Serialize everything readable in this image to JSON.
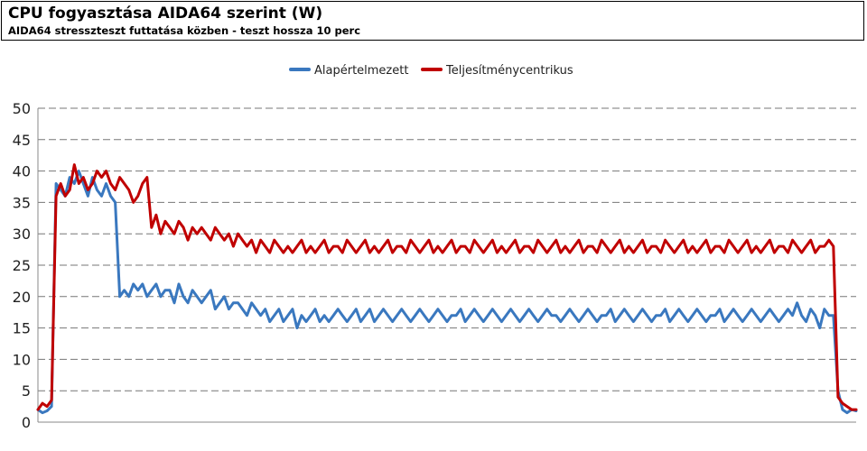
{
  "chart_data": {
    "type": "line",
    "title": "CPU fogyasztása AIDA64 szerint (W)",
    "subtitle": "AIDA64 stresszteszt futtatása közben - teszt hossza 10 perc",
    "xlabel": "",
    "ylabel": "",
    "ylim": [
      0,
      50
    ],
    "yticks": [
      0,
      5,
      10,
      15,
      20,
      25,
      30,
      35,
      40,
      45,
      50
    ],
    "grid": "horizontal-dashed",
    "legend_position": "top-center",
    "x": [
      0,
      1,
      2,
      3,
      4,
      5,
      6,
      7,
      8,
      9,
      10,
      11,
      12,
      13,
      14,
      15,
      16,
      17,
      18,
      19,
      20,
      21,
      22,
      23,
      24,
      25,
      26,
      27,
      28,
      29,
      30,
      31,
      32,
      33,
      34,
      35,
      36,
      37,
      38,
      39,
      40,
      41,
      42,
      43,
      44,
      45,
      46,
      47,
      48,
      49,
      50,
      51,
      52,
      53,
      54,
      55,
      56,
      57,
      58,
      59,
      60,
      61,
      62,
      63,
      64,
      65,
      66,
      67,
      68,
      69,
      70,
      71,
      72,
      73,
      74,
      75,
      76,
      77,
      78,
      79,
      80,
      81,
      82,
      83,
      84,
      85,
      86,
      87,
      88,
      89,
      90,
      91,
      92,
      93,
      94,
      95,
      96,
      97,
      98,
      99,
      100,
      101,
      102,
      103,
      104,
      105,
      106,
      107,
      108,
      109,
      110,
      111,
      112,
      113,
      114,
      115,
      116,
      117,
      118,
      119,
      120,
      121,
      122,
      123,
      124,
      125,
      126,
      127,
      128,
      129,
      130,
      131,
      132,
      133,
      134,
      135,
      136,
      137,
      138,
      139,
      140,
      141,
      142,
      143,
      144,
      145,
      146,
      147,
      148,
      149,
      150,
      151,
      152,
      153,
      154,
      155,
      156,
      157,
      158,
      159,
      160,
      161,
      162,
      163,
      164,
      165,
      166,
      167,
      168,
      169,
      170,
      171,
      172,
      173,
      174,
      175,
      176,
      177,
      178,
      179,
      180
    ],
    "series": [
      {
        "name": "Alapértelmezett",
        "color": "#3a78bf",
        "values": [
          2,
          1.5,
          1.8,
          2.5,
          38,
          37,
          36,
          39,
          38,
          40,
          38,
          36,
          39,
          37,
          36,
          38,
          36,
          35,
          20,
          21,
          20,
          22,
          21,
          22,
          20,
          21,
          22,
          20,
          21,
          21,
          19,
          22,
          20,
          19,
          21,
          20,
          19,
          20,
          21,
          18,
          19,
          20,
          18,
          19,
          19,
          18,
          17,
          19,
          18,
          17,
          18,
          16,
          17,
          18,
          16,
          17,
          18,
          15,
          17,
          16,
          17,
          18,
          16,
          17,
          16,
          17,
          18,
          17,
          16,
          17,
          18,
          16,
          17,
          18,
          16,
          17,
          18,
          17,
          16,
          17,
          18,
          17,
          16,
          17,
          18,
          17,
          16,
          17,
          18,
          17,
          16,
          17,
          17,
          18,
          16,
          17,
          18,
          17,
          16,
          17,
          18,
          17,
          16,
          17,
          18,
          17,
          16,
          17,
          18,
          17,
          16,
          17,
          18,
          17,
          17,
          16,
          17,
          18,
          17,
          16,
          17,
          18,
          17,
          16,
          17,
          17,
          18,
          16,
          17,
          18,
          17,
          16,
          17,
          18,
          17,
          16,
          17,
          17,
          18,
          16,
          17,
          18,
          17,
          16,
          17,
          18,
          17,
          16,
          17,
          17,
          18,
          16,
          17,
          18,
          17,
          16,
          17,
          18,
          17,
          16,
          17,
          18,
          17,
          16,
          17,
          18,
          17,
          19,
          17,
          16,
          18,
          17,
          15,
          18,
          17,
          17,
          5,
          2,
          1.5,
          2,
          1.8
        ]
      },
      {
        "name": "Teljesítménycentrikus",
        "color": "#c00000",
        "values": [
          2,
          3,
          2.5,
          3.5,
          36,
          38,
          36,
          37,
          41,
          38,
          39,
          37,
          38,
          40,
          39,
          40,
          38,
          37,
          39,
          38,
          37,
          35,
          36,
          38,
          39,
          31,
          33,
          30,
          32,
          31,
          30,
          32,
          31,
          29,
          31,
          30,
          31,
          30,
          29,
          31,
          30,
          29,
          30,
          28,
          30,
          29,
          28,
          29,
          27,
          29,
          28,
          27,
          29,
          28,
          27,
          28,
          27,
          28,
          29,
          27,
          28,
          27,
          28,
          29,
          27,
          28,
          28,
          27,
          29,
          28,
          27,
          28,
          29,
          27,
          28,
          27,
          28,
          29,
          27,
          28,
          28,
          27,
          29,
          28,
          27,
          28,
          29,
          27,
          28,
          27,
          28,
          29,
          27,
          28,
          28,
          27,
          29,
          28,
          27,
          28,
          29,
          27,
          28,
          27,
          28,
          29,
          27,
          28,
          28,
          27,
          29,
          28,
          27,
          28,
          29,
          27,
          28,
          27,
          28,
          29,
          27,
          28,
          28,
          27,
          29,
          28,
          27,
          28,
          29,
          27,
          28,
          27,
          28,
          29,
          27,
          28,
          28,
          27,
          29,
          28,
          27,
          28,
          29,
          27,
          28,
          27,
          28,
          29,
          27,
          28,
          28,
          27,
          29,
          28,
          27,
          28,
          29,
          27,
          28,
          27,
          28,
          29,
          27,
          28,
          28,
          27,
          29,
          28,
          27,
          28,
          29,
          27,
          28,
          28,
          29,
          28,
          4,
          3,
          2.5,
          2,
          2
        ]
      }
    ]
  }
}
